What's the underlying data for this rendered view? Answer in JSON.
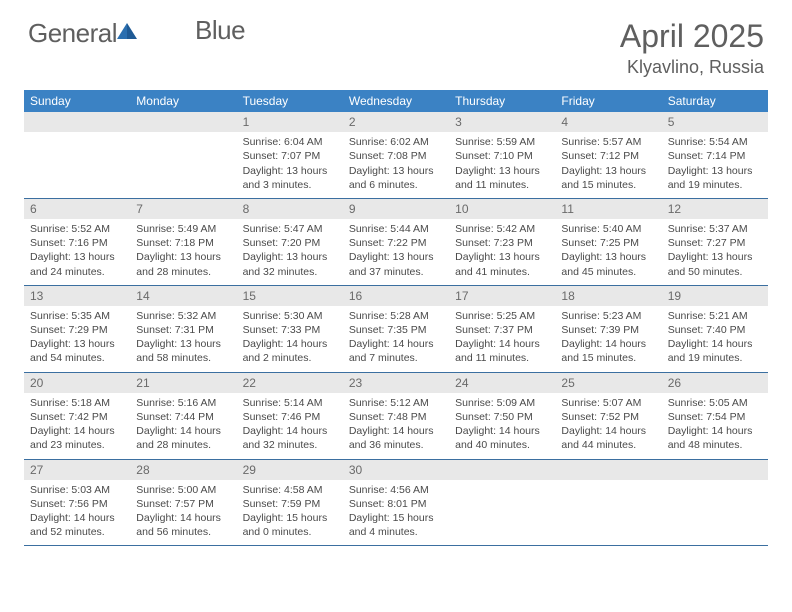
{
  "logo": {
    "general": "General",
    "blue": "Blue"
  },
  "title": "April 2025",
  "location": "Klyavlino, Russia",
  "colors": {
    "header_bg": "#3b82c4",
    "header_text": "#ffffff",
    "daynum_bg": "#e8e8e8",
    "text": "#4a4a4a",
    "border": "#3b6fa0",
    "logo_gray": "#5f5f5f",
    "logo_blue": "#2b6fb0"
  },
  "day_labels": [
    "Sunday",
    "Monday",
    "Tuesday",
    "Wednesday",
    "Thursday",
    "Friday",
    "Saturday"
  ],
  "weeks": [
    [
      {
        "empty": true
      },
      {
        "empty": true
      },
      {
        "n": "1",
        "sr": "Sunrise: 6:04 AM",
        "ss": "Sunset: 7:07 PM",
        "d1": "Daylight: 13 hours",
        "d2": "and 3 minutes."
      },
      {
        "n": "2",
        "sr": "Sunrise: 6:02 AM",
        "ss": "Sunset: 7:08 PM",
        "d1": "Daylight: 13 hours",
        "d2": "and 6 minutes."
      },
      {
        "n": "3",
        "sr": "Sunrise: 5:59 AM",
        "ss": "Sunset: 7:10 PM",
        "d1": "Daylight: 13 hours",
        "d2": "and 11 minutes."
      },
      {
        "n": "4",
        "sr": "Sunrise: 5:57 AM",
        "ss": "Sunset: 7:12 PM",
        "d1": "Daylight: 13 hours",
        "d2": "and 15 minutes."
      },
      {
        "n": "5",
        "sr": "Sunrise: 5:54 AM",
        "ss": "Sunset: 7:14 PM",
        "d1": "Daylight: 13 hours",
        "d2": "and 19 minutes."
      }
    ],
    [
      {
        "n": "6",
        "sr": "Sunrise: 5:52 AM",
        "ss": "Sunset: 7:16 PM",
        "d1": "Daylight: 13 hours",
        "d2": "and 24 minutes."
      },
      {
        "n": "7",
        "sr": "Sunrise: 5:49 AM",
        "ss": "Sunset: 7:18 PM",
        "d1": "Daylight: 13 hours",
        "d2": "and 28 minutes."
      },
      {
        "n": "8",
        "sr": "Sunrise: 5:47 AM",
        "ss": "Sunset: 7:20 PM",
        "d1": "Daylight: 13 hours",
        "d2": "and 32 minutes."
      },
      {
        "n": "9",
        "sr": "Sunrise: 5:44 AM",
        "ss": "Sunset: 7:22 PM",
        "d1": "Daylight: 13 hours",
        "d2": "and 37 minutes."
      },
      {
        "n": "10",
        "sr": "Sunrise: 5:42 AM",
        "ss": "Sunset: 7:23 PM",
        "d1": "Daylight: 13 hours",
        "d2": "and 41 minutes."
      },
      {
        "n": "11",
        "sr": "Sunrise: 5:40 AM",
        "ss": "Sunset: 7:25 PM",
        "d1": "Daylight: 13 hours",
        "d2": "and 45 minutes."
      },
      {
        "n": "12",
        "sr": "Sunrise: 5:37 AM",
        "ss": "Sunset: 7:27 PM",
        "d1": "Daylight: 13 hours",
        "d2": "and 50 minutes."
      }
    ],
    [
      {
        "n": "13",
        "sr": "Sunrise: 5:35 AM",
        "ss": "Sunset: 7:29 PM",
        "d1": "Daylight: 13 hours",
        "d2": "and 54 minutes."
      },
      {
        "n": "14",
        "sr": "Sunrise: 5:32 AM",
        "ss": "Sunset: 7:31 PM",
        "d1": "Daylight: 13 hours",
        "d2": "and 58 minutes."
      },
      {
        "n": "15",
        "sr": "Sunrise: 5:30 AM",
        "ss": "Sunset: 7:33 PM",
        "d1": "Daylight: 14 hours",
        "d2": "and 2 minutes."
      },
      {
        "n": "16",
        "sr": "Sunrise: 5:28 AM",
        "ss": "Sunset: 7:35 PM",
        "d1": "Daylight: 14 hours",
        "d2": "and 7 minutes."
      },
      {
        "n": "17",
        "sr": "Sunrise: 5:25 AM",
        "ss": "Sunset: 7:37 PM",
        "d1": "Daylight: 14 hours",
        "d2": "and 11 minutes."
      },
      {
        "n": "18",
        "sr": "Sunrise: 5:23 AM",
        "ss": "Sunset: 7:39 PM",
        "d1": "Daylight: 14 hours",
        "d2": "and 15 minutes."
      },
      {
        "n": "19",
        "sr": "Sunrise: 5:21 AM",
        "ss": "Sunset: 7:40 PM",
        "d1": "Daylight: 14 hours",
        "d2": "and 19 minutes."
      }
    ],
    [
      {
        "n": "20",
        "sr": "Sunrise: 5:18 AM",
        "ss": "Sunset: 7:42 PM",
        "d1": "Daylight: 14 hours",
        "d2": "and 23 minutes."
      },
      {
        "n": "21",
        "sr": "Sunrise: 5:16 AM",
        "ss": "Sunset: 7:44 PM",
        "d1": "Daylight: 14 hours",
        "d2": "and 28 minutes."
      },
      {
        "n": "22",
        "sr": "Sunrise: 5:14 AM",
        "ss": "Sunset: 7:46 PM",
        "d1": "Daylight: 14 hours",
        "d2": "and 32 minutes."
      },
      {
        "n": "23",
        "sr": "Sunrise: 5:12 AM",
        "ss": "Sunset: 7:48 PM",
        "d1": "Daylight: 14 hours",
        "d2": "and 36 minutes."
      },
      {
        "n": "24",
        "sr": "Sunrise: 5:09 AM",
        "ss": "Sunset: 7:50 PM",
        "d1": "Daylight: 14 hours",
        "d2": "and 40 minutes."
      },
      {
        "n": "25",
        "sr": "Sunrise: 5:07 AM",
        "ss": "Sunset: 7:52 PM",
        "d1": "Daylight: 14 hours",
        "d2": "and 44 minutes."
      },
      {
        "n": "26",
        "sr": "Sunrise: 5:05 AM",
        "ss": "Sunset: 7:54 PM",
        "d1": "Daylight: 14 hours",
        "d2": "and 48 minutes."
      }
    ],
    [
      {
        "n": "27",
        "sr": "Sunrise: 5:03 AM",
        "ss": "Sunset: 7:56 PM",
        "d1": "Daylight: 14 hours",
        "d2": "and 52 minutes."
      },
      {
        "n": "28",
        "sr": "Sunrise: 5:00 AM",
        "ss": "Sunset: 7:57 PM",
        "d1": "Daylight: 14 hours",
        "d2": "and 56 minutes."
      },
      {
        "n": "29",
        "sr": "Sunrise: 4:58 AM",
        "ss": "Sunset: 7:59 PM",
        "d1": "Daylight: 15 hours",
        "d2": "and 0 minutes."
      },
      {
        "n": "30",
        "sr": "Sunrise: 4:56 AM",
        "ss": "Sunset: 8:01 PM",
        "d1": "Daylight: 15 hours",
        "d2": "and 4 minutes."
      },
      {
        "empty": true
      },
      {
        "empty": true
      },
      {
        "empty": true
      }
    ]
  ]
}
